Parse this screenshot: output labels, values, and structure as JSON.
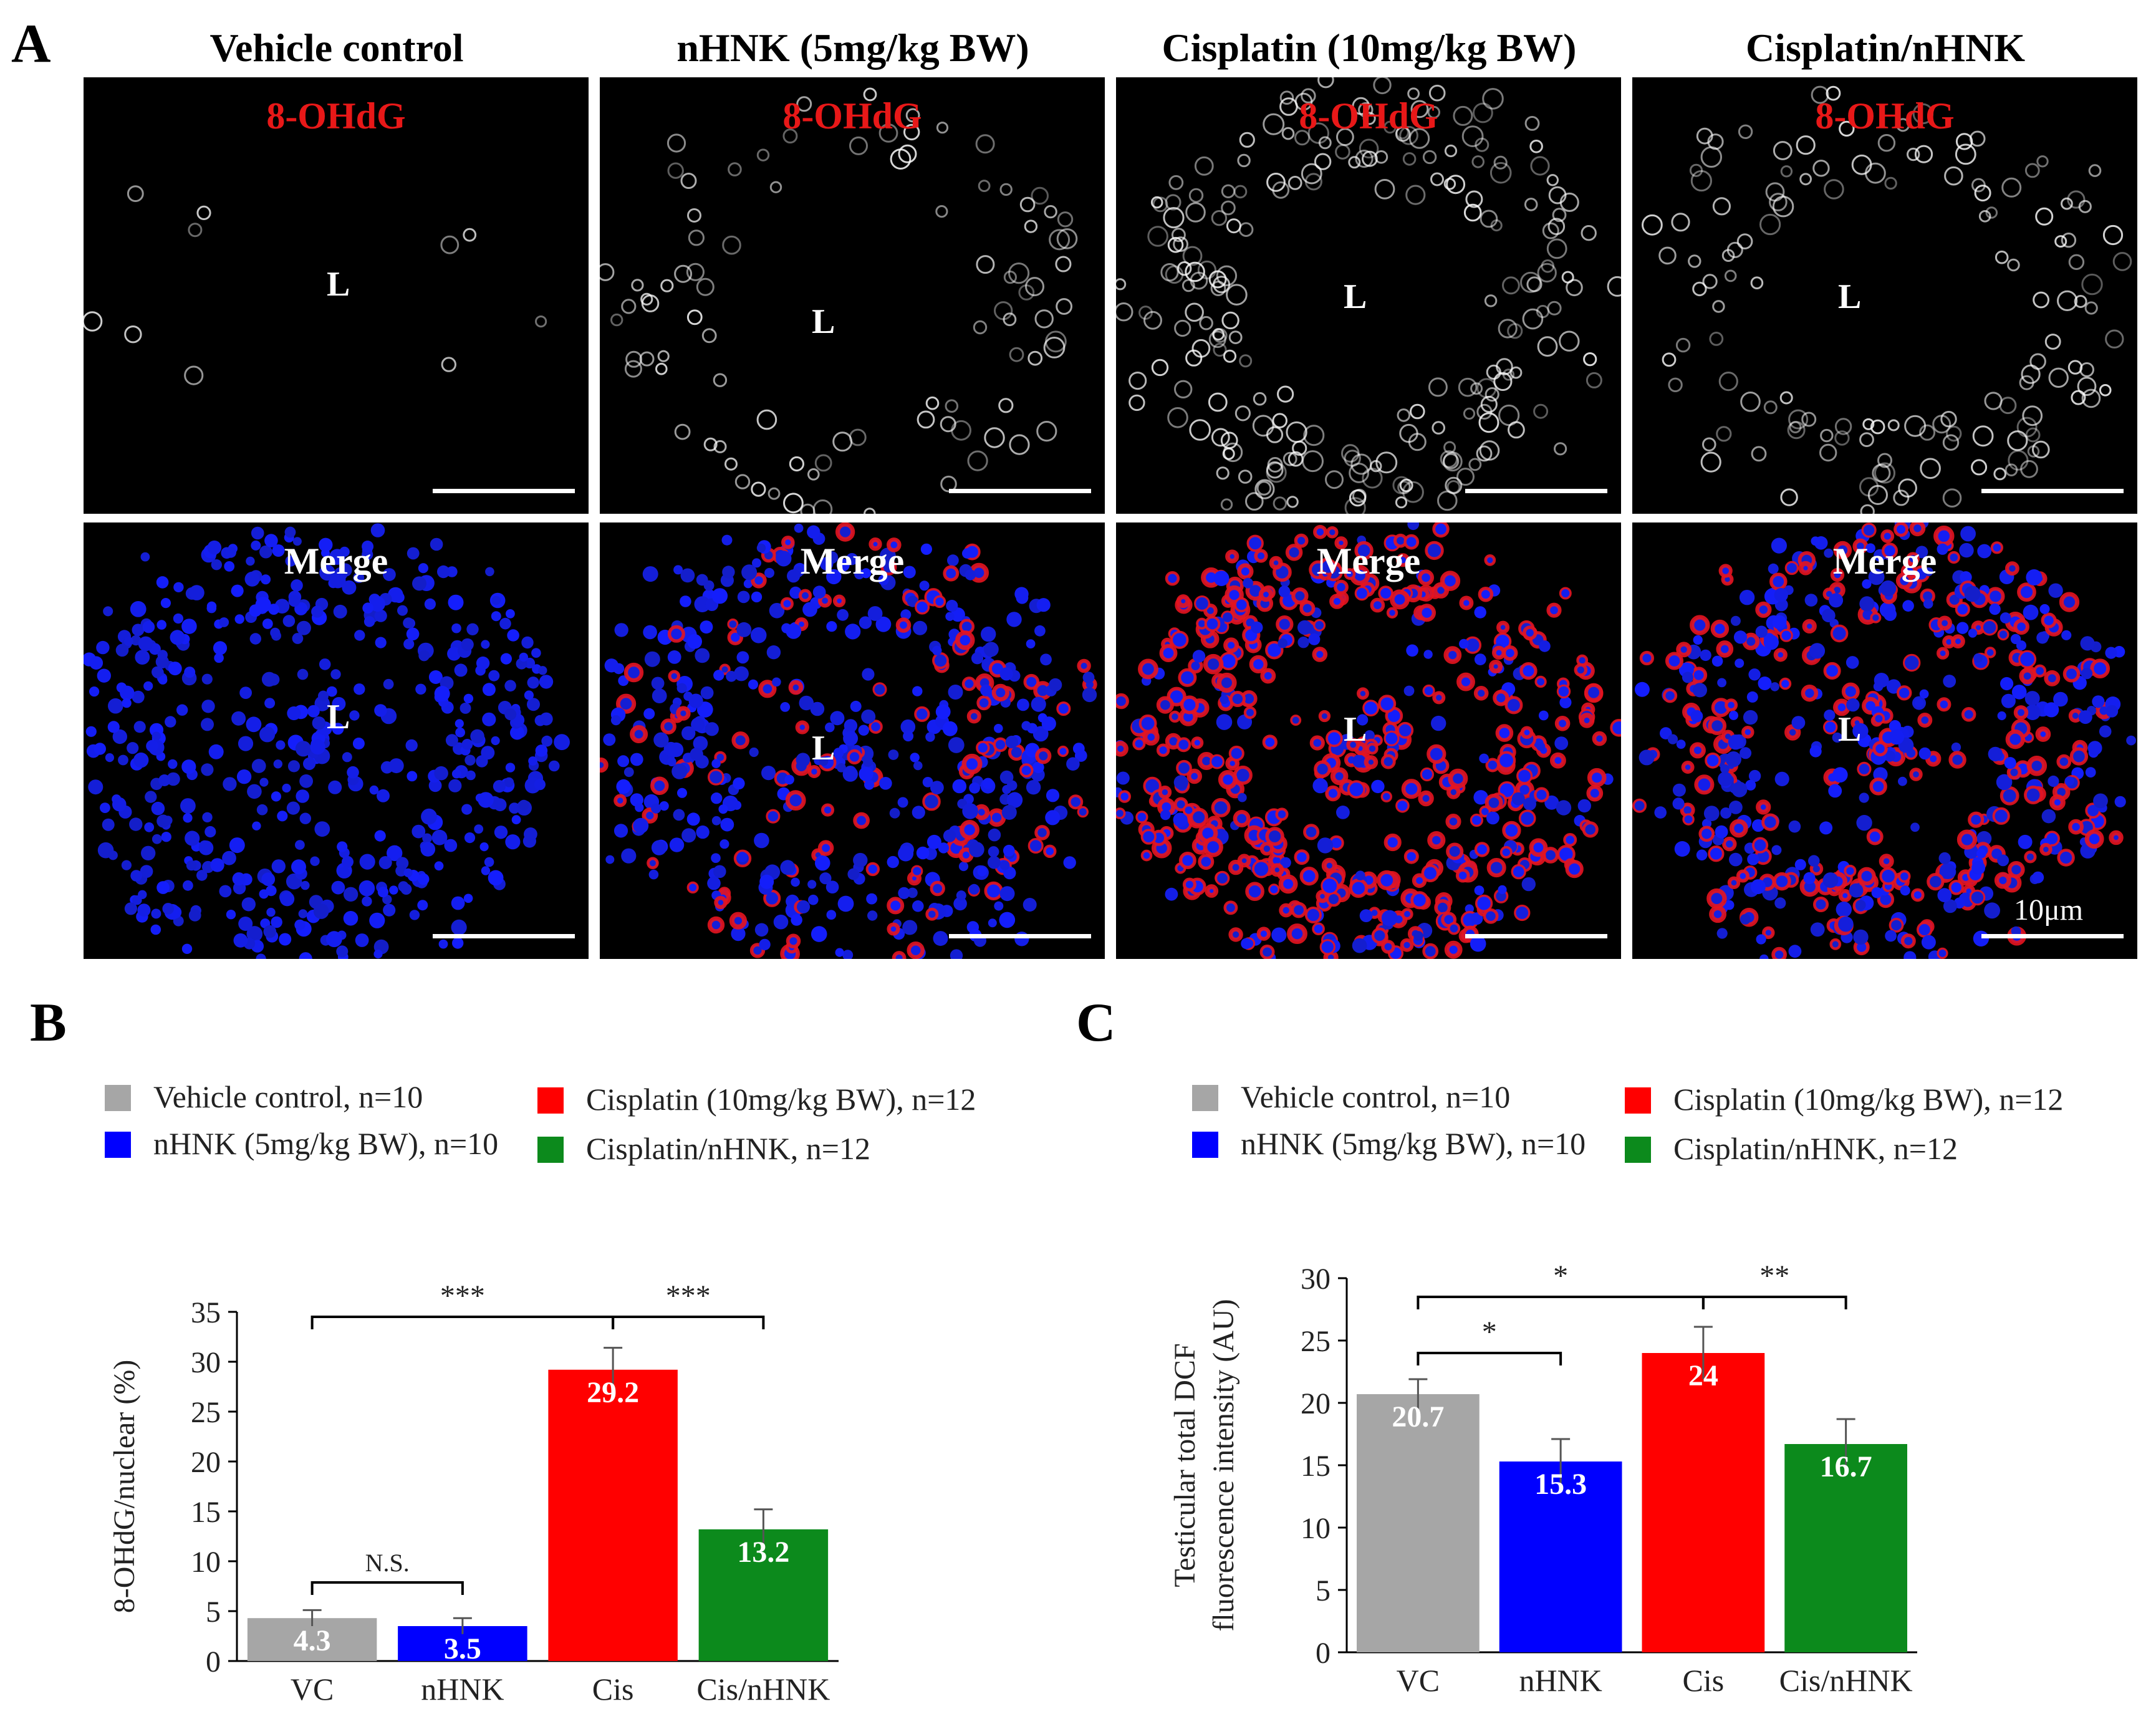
{
  "panel_a": {
    "letter": "A",
    "columns": [
      {
        "title": "Vehicle control",
        "color": "#000000"
      },
      {
        "title": "nHNK (5mg/kg BW)",
        "color": "#1010d0"
      },
      {
        "title": "Cisplatin (10mg/kg BW)",
        "color": "#e01010"
      },
      {
        "title": "Cisplatin/nHNK",
        "color": "#1a8a1a"
      }
    ],
    "row_labels": {
      "top": "8-OHdG",
      "bottom": "Merge"
    },
    "lumen_label": "L",
    "scale_bar_label": "10μm"
  },
  "panel_b": {
    "letter": "B",
    "legend": [
      {
        "label": "Vehicle control, n=10",
        "color": "#a6a6a6"
      },
      {
        "label": "nHNK (5mg/kg BW), n=10",
        "color": "#0000ff"
      },
      {
        "label": "Cisplatin (10mg/kg BW), n=12",
        "color": "#ff0000"
      },
      {
        "label": "Cisplatin/nHNK, n=12",
        "color": "#0c8a1c"
      }
    ]
  },
  "panel_c": {
    "letter": "C",
    "legend": [
      {
        "label": "Vehicle control, n=10",
        "color": "#a6a6a6"
      },
      {
        "label": "nHNK (5mg/kg BW), n=10",
        "color": "#0000ff"
      },
      {
        "label": "Cisplatin (10mg/kg BW), n=12",
        "color": "#ff0000"
      },
      {
        "label": "Cisplatin/nHNK, n=12",
        "color": "#0c8a1c"
      }
    ]
  },
  "chart_data": [
    {
      "id": "B",
      "type": "bar",
      "categories": [
        "VC",
        "nHNK",
        "Cis",
        "Cis/nHNK"
      ],
      "values": [
        4.3,
        3.5,
        29.2,
        13.2
      ],
      "value_labels": [
        "4.3",
        "3.5",
        "29.2",
        "13.2"
      ],
      "errors": [
        0.8,
        0.8,
        2.2,
        2.0
      ],
      "colors": [
        "#a6a6a6",
        "#0000ff",
        "#ff0000",
        "#0c8a1c"
      ],
      "ylabel": "8-OHdG/nuclear (%)",
      "ylim": [
        0,
        35
      ],
      "yticks": [
        0,
        5,
        10,
        15,
        20,
        25,
        30,
        35
      ],
      "significance": [
        {
          "from": 0,
          "to": 1,
          "label": "N.S.",
          "level": 0
        },
        {
          "from": 0,
          "to": 2,
          "label": "***",
          "level": 1
        },
        {
          "from": 2,
          "to": 3,
          "label": "***",
          "level": 1
        }
      ]
    },
    {
      "id": "C",
      "type": "bar",
      "categories": [
        "VC",
        "nHNK",
        "Cis",
        "Cis/nHNK"
      ],
      "values": [
        20.7,
        15.3,
        24,
        16.7
      ],
      "value_labels": [
        "20.7",
        "15.3",
        "24",
        "16.7"
      ],
      "errors": [
        1.2,
        1.8,
        2.1,
        2.0
      ],
      "colors": [
        "#a6a6a6",
        "#0000ff",
        "#ff0000",
        "#0c8a1c"
      ],
      "ylabel": "Testicular total DCF fluorescence intensity (AU)",
      "ylabel_lines": [
        "Testicular total DCF",
        "fluorescence intensity (AU)"
      ],
      "ylim": [
        0,
        30
      ],
      "yticks": [
        0,
        5,
        10,
        15,
        20,
        25,
        30
      ],
      "significance": [
        {
          "from": 0,
          "to": 1,
          "label": "*",
          "level": 0
        },
        {
          "from": 0,
          "to": 2,
          "label": "*",
          "level": 1
        },
        {
          "from": 2,
          "to": 3,
          "label": "**",
          "level": 1
        }
      ]
    }
  ]
}
